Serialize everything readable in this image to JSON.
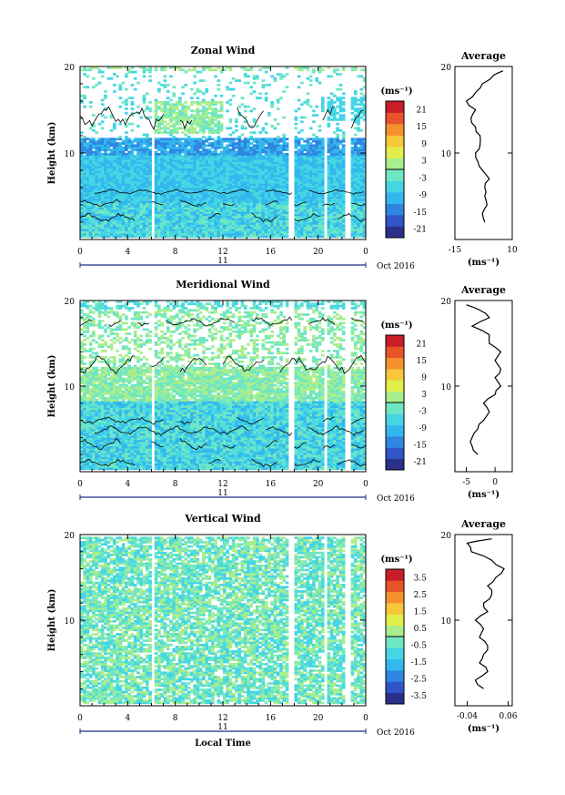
{
  "chart_data": [
    {
      "type": "heatmap",
      "title": "Zonal Wind",
      "xlabel": "",
      "ylabel": "Height (km)",
      "xlim": [
        0,
        24
      ],
      "ylim": [
        0,
        20
      ],
      "x_ticks": [
        "0",
        "4",
        "8",
        "12",
        "16",
        "20",
        "0"
      ],
      "y_ticks": [
        "20",
        "10"
      ],
      "date_bar": {
        "label": "11",
        "date": "Oct 2016"
      },
      "colorbar": {
        "unit": "(ms⁻¹)",
        "ticks": [
          "21",
          "15",
          "9",
          "3",
          "-3",
          "-9",
          "-15",
          "-21"
        ],
        "range": [
          -24,
          24
        ]
      },
      "data_gaps_hours": [
        5.8,
        17.5,
        20.3,
        22.2
      ],
      "profile": {
        "title": "Average",
        "xlabel": "(ms⁻¹)",
        "xlim": [
          -15,
          10
        ],
        "x_ticks": [
          "-15",
          "10"
        ],
        "y_ticks": [
          "20",
          "10"
        ],
        "heights": [
          2,
          3,
          4,
          5,
          6,
          7,
          8,
          9,
          10,
          11,
          12,
          13,
          14,
          15,
          16,
          17,
          18,
          19,
          19.5
        ],
        "values": [
          -2,
          -3,
          -1,
          -2,
          -2,
          0,
          -3,
          -5,
          -6,
          -4,
          -4,
          -6,
          -8,
          -6,
          -10,
          -6,
          -3,
          2,
          6
        ]
      }
    },
    {
      "type": "heatmap",
      "title": "Meridional Wind",
      "xlabel": "",
      "ylabel": "Height (km)",
      "xlim": [
        0,
        24
      ],
      "ylim": [
        0,
        20
      ],
      "x_ticks": [
        "0",
        "4",
        "8",
        "12",
        "16",
        "20",
        "0"
      ],
      "y_ticks": [
        "20",
        "10"
      ],
      "date_bar": {
        "label": "11",
        "date": "Oct 2016"
      },
      "colorbar": {
        "unit": "(ms⁻¹)",
        "ticks": [
          "21",
          "15",
          "9",
          "3",
          "-3",
          "-9",
          "-15",
          "-21"
        ],
        "range": [
          -24,
          24
        ]
      },
      "data_gaps_hours": [
        5.8,
        17.5,
        20.3,
        22.2
      ],
      "profile": {
        "title": "Average",
        "xlabel": "(ms⁻¹)",
        "xlim": [
          -7,
          3
        ],
        "x_ticks": [
          "-5",
          "0"
        ],
        "y_ticks": [
          "20",
          "10"
        ],
        "heights": [
          2,
          3,
          4,
          5,
          6,
          7,
          8,
          9,
          10,
          11,
          12,
          13,
          14,
          15,
          16,
          17,
          18,
          19,
          19.5
        ],
        "values": [
          -3,
          -4,
          -4,
          -3,
          -2,
          -1,
          -2,
          0,
          1,
          0,
          1,
          0,
          1,
          -1,
          -1,
          -4,
          -1,
          -3,
          -5
        ]
      }
    },
    {
      "type": "heatmap",
      "title": "Vertical Wind",
      "xlabel": "Local Time",
      "ylabel": "Height (km)",
      "xlim": [
        0,
        24
      ],
      "ylim": [
        0,
        20
      ],
      "x_ticks": [
        "0",
        "4",
        "8",
        "12",
        "16",
        "20",
        "0"
      ],
      "y_ticks": [
        "20",
        "10"
      ],
      "date_bar": {
        "label": "11",
        "date": "Oct 2016"
      },
      "colorbar": {
        "unit": "(ms⁻¹)",
        "ticks": [
          "3.5",
          "2.5",
          "1.5",
          "0.5",
          "-0.5",
          "-1.5",
          "-2.5",
          "-3.5"
        ],
        "range": [
          -4,
          4
        ]
      },
      "data_gaps_hours": [
        5.8,
        17.5,
        20.3,
        22.2
      ],
      "profile": {
        "title": "Average",
        "xlabel": "(ms⁻¹)",
        "xlim": [
          -0.07,
          0.07
        ],
        "x_ticks": [
          "-0.04",
          "0.06"
        ],
        "y_ticks": [
          "20",
          "10"
        ],
        "heights": [
          2,
          3,
          4,
          5,
          6,
          7,
          8,
          9,
          10,
          11,
          12,
          13,
          14,
          15,
          16,
          17,
          18,
          19,
          19.5
        ],
        "values": [
          0,
          -0.02,
          0.01,
          -0.01,
          0,
          0.01,
          -0.01,
          0,
          -0.02,
          0.01,
          0,
          0.02,
          0.01,
          0.03,
          0.05,
          0.02,
          -0.03,
          -0.04,
          0.02
        ]
      }
    }
  ],
  "colormap": [
    "#2a2f8a",
    "#2f56c8",
    "#2f86e0",
    "#33b8ee",
    "#45d6e4",
    "#6fe6c4",
    "#a9ee8c",
    "#e2ee4a",
    "#f6c63b",
    "#f5902e",
    "#e8542a",
    "#c81e2a"
  ]
}
